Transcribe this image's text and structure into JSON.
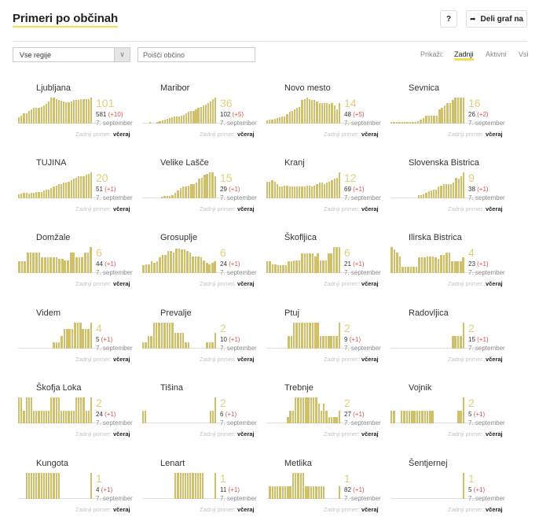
{
  "header": {
    "title": "Primeri po občinah",
    "help_label": "?",
    "share_label": "Deli graf na"
  },
  "filters": {
    "region_selected": "Vse regije",
    "search_placeholder": "Poišči občino",
    "show_label": "Prikaži:",
    "options": [
      "Zadnji",
      "Aktivni",
      "Vsi"
    ],
    "active_option": "Zadnji"
  },
  "colors": {
    "bar": "#d1c069",
    "count": "#e0cf7a",
    "delta": "#d9534f",
    "accent_underline": "#f2de52"
  },
  "labels": {
    "last_case_prefix": "Zadnji primer:",
    "last_case_value": "včeraj",
    "date": "7. september"
  },
  "chart_data": {
    "type": "bar",
    "title": "Primeri po občinah",
    "description": "Small-multiple sparkline bar charts of active cases per municipality (relative heights 0-1 estimated)",
    "municipalities": [
      {
        "name": "Ljubljana",
        "active": "101",
        "total": "581",
        "delta": "(+10)",
        "values": [
          0.25,
          0.3,
          0.4,
          0.4,
          0.5,
          0.55,
          0.6,
          0.62,
          0.62,
          0.65,
          0.7,
          0.75,
          0.85,
          1.0,
          1.0,
          0.95,
          0.9,
          0.88,
          0.85,
          0.82,
          0.82,
          0.85,
          0.9,
          0.92,
          0.92,
          0.95,
          0.95,
          0.95,
          0.93,
          1.0
        ]
      },
      {
        "name": "Maribor",
        "active": "36",
        "total": "102",
        "delta": "(+5)",
        "values": [
          0,
          0,
          0,
          0.05,
          0,
          0,
          0.05,
          0.08,
          0.12,
          0.15,
          0.18,
          0.22,
          0.25,
          0.28,
          0.28,
          0.28,
          0.3,
          0.35,
          0.4,
          0.45,
          0.48,
          0.5,
          0.55,
          0.6,
          0.65,
          0.7,
          0.72,
          0.78,
          0.85,
          0.95,
          1.0
        ]
      },
      {
        "name": "Novo mesto",
        "active": "14",
        "total": "48",
        "delta": "(+5)",
        "values": [
          0.12,
          0.15,
          0.15,
          0.18,
          0.2,
          0.25,
          0.28,
          0.28,
          0.38,
          0.45,
          0.5,
          0.55,
          0.6,
          0.65,
          0.9,
          0.95,
          1.0,
          0.95,
          0.9,
          0.92,
          0.85,
          0.8,
          0.8,
          0.8,
          0.8,
          0.75,
          0.8,
          0.7,
          0.55,
          0.8
        ]
      },
      {
        "name": "Sevnica",
        "active": "16",
        "total": "26",
        "delta": "(+2)",
        "values": [
          0.05,
          0.05,
          0.05,
          0.05,
          0.05,
          0.05,
          0.06,
          0.06,
          0.06,
          0.06,
          0.1,
          0.15,
          0.2,
          0.3,
          0.3,
          0.3,
          0.3,
          0.3,
          0.55,
          0.6,
          0.7,
          0.8,
          0.8,
          0.9,
          1.0,
          1.0,
          1.0,
          1.0
        ]
      },
      {
        "name": "TUJINA",
        "active": "20",
        "total": "51",
        "delta": "(+1)",
        "values": [
          0.15,
          0.18,
          0.2,
          0.2,
          0.18,
          0.2,
          0.22,
          0.25,
          0.25,
          0.25,
          0.3,
          0.35,
          0.35,
          0.4,
          0.45,
          0.5,
          0.55,
          0.55,
          0.6,
          0.62,
          0.65,
          0.7,
          0.75,
          0.8,
          0.85,
          0.85,
          0.85,
          0.9,
          0.95,
          1.0
        ]
      },
      {
        "name": "Velike Lašče",
        "active": "15",
        "total": "29",
        "delta": "(+1)",
        "values": [
          0,
          0,
          0,
          0,
          0,
          0,
          0,
          0.05,
          0.08,
          0.08,
          0.1,
          0.12,
          0.2,
          0.3,
          0.4,
          0.45,
          0.45,
          0.5,
          0.55,
          0.55,
          0.6,
          0.75,
          0.8,
          0.9,
          0.95,
          1.0,
          1.0,
          0.85
        ]
      },
      {
        "name": "Kranj",
        "active": "12",
        "total": "69",
        "delta": "(+1)",
        "values": [
          0.65,
          0.65,
          0.7,
          0.65,
          0.55,
          0.45,
          0.45,
          0.5,
          0.5,
          0.45,
          0.45,
          0.45,
          0.45,
          0.45,
          0.45,
          0.45,
          0.48,
          0.48,
          0.45,
          0.5,
          0.55,
          0.6,
          0.6,
          0.55,
          0.6,
          0.65,
          0.7,
          0.75,
          0.8,
          1.0
        ]
      },
      {
        "name": "Slovenska Bistrica",
        "active": "9",
        "total": "38",
        "delta": "(+1)",
        "values": [
          0,
          0,
          0,
          0,
          0,
          0,
          0,
          0,
          0,
          0,
          0,
          0.12,
          0.12,
          0.15,
          0.2,
          0.28,
          0.3,
          0.35,
          0.35,
          0.45,
          0.5,
          0.55,
          0.55,
          0.55,
          0.55,
          0.6,
          0.8,
          0.75,
          0.85,
          1.0
        ]
      },
      {
        "name": "Domžale",
        "active": "6",
        "total": "44",
        "delta": "(+1)",
        "values": [
          0.45,
          0.45,
          0.45,
          0.8,
          0.8,
          0.8,
          0.8,
          0.8,
          0.6,
          0.6,
          0.6,
          0.6,
          0.6,
          0.6,
          0.55,
          0.55,
          0.5,
          0.5,
          0.8,
          0.8,
          0.6,
          0.6,
          0.6,
          0.8,
          0.8,
          1.0
        ]
      },
      {
        "name": "Grosuplje",
        "active": "6",
        "total": "24",
        "delta": "(+1)",
        "values": [
          0.3,
          0.35,
          0.35,
          0.45,
          0.4,
          0.45,
          0.6,
          0.7,
          0.7,
          0.85,
          0.85,
          0.8,
          0.95,
          0.95,
          0.9,
          0.9,
          0.85,
          0.8,
          0.65,
          0.65,
          0.65,
          0.6,
          0.5,
          0.4,
          0.35,
          0.4,
          0.45
        ]
      },
      {
        "name": "Škofljica",
        "active": "6",
        "total": "21",
        "delta": "(+1)",
        "values": [
          0.45,
          0.45,
          0.35,
          0.35,
          0.3,
          0.3,
          0.3,
          0.3,
          0.45,
          0.45,
          0.5,
          0.5,
          0.5,
          0.75,
          0.75,
          0.75,
          0.75,
          0.75,
          0.65,
          0.75,
          0.5,
          0.5,
          0.5,
          0.75,
          0.75,
          1.0,
          1.0,
          1.0
        ]
      },
      {
        "name": "Ilirska Bistrica",
        "active": "4",
        "total": "23",
        "delta": "(+1)",
        "values": [
          1.0,
          0.9,
          0.8,
          0.65,
          0.25,
          0.25,
          0.25,
          0.25,
          0.25,
          0.25,
          0.6,
          0.6,
          0.6,
          0.65,
          0.65,
          0.65,
          0.6,
          0.55,
          0.7,
          0.7,
          0.8,
          0.8,
          0.45,
          0.45,
          0.45,
          0.45,
          0.6
        ]
      },
      {
        "name": "Videm",
        "active": "4",
        "total": "5",
        "delta": "(+1)",
        "values": [
          0,
          0,
          0,
          0,
          0,
          0,
          0,
          0,
          0,
          0,
          0,
          0,
          0,
          0.25,
          0.25,
          0.25,
          0.5,
          0.75,
          0.75,
          0.75,
          0.75,
          1.0,
          1.0,
          1.0,
          0.75,
          0.75,
          0.75,
          1.0
        ]
      },
      {
        "name": "Prevalje",
        "active": "2",
        "total": "10",
        "delta": "(+1)",
        "values": [
          0.25,
          0.25,
          0.5,
          0.5,
          1.0,
          1.0,
          1.0,
          1.0,
          1.0,
          1.0,
          1.0,
          1.0,
          0.6,
          0.6,
          0.6,
          0.6,
          0.25,
          0.25,
          0,
          0,
          0,
          0,
          0,
          0,
          0.25,
          0.25,
          0.25,
          0.6
        ]
      },
      {
        "name": "Ptuj",
        "active": "2",
        "total": "9",
        "delta": "(+1)",
        "values": [
          0,
          0,
          0,
          0,
          0,
          0,
          0,
          0,
          0.5,
          0.5,
          1.0,
          1.0,
          1.0,
          1.0,
          1.0,
          1.0,
          1.0,
          1.0,
          1.0,
          1.0,
          0.5,
          0.5,
          0.5,
          0.5,
          0.5,
          0.5,
          0.5,
          1.0
        ]
      },
      {
        "name": "Radovljica",
        "active": "2",
        "total": "15",
        "delta": "(+1)",
        "values": [
          0,
          0,
          0,
          0,
          0,
          0,
          0,
          0,
          0,
          0,
          0,
          0,
          0,
          0,
          0,
          0,
          0,
          0,
          0,
          0,
          0,
          0,
          0,
          0.5,
          0.5,
          0.5,
          0.5,
          1.0
        ]
      },
      {
        "name": "Škofja Loka",
        "active": "2",
        "total": "24",
        "delta": "(+1)",
        "values": [
          1.0,
          1.0,
          0.5,
          1.0,
          1.0,
          1.0,
          0.5,
          0.5,
          0.5,
          0.5,
          0.5,
          0.5,
          0.5,
          1.0,
          1.0,
          1.0,
          1.0,
          0.5,
          0.5,
          0.5,
          0.5,
          0.5,
          0.5,
          1.0,
          1.0,
          1.0,
          1.0,
          0.5,
          0.5,
          1.0
        ]
      },
      {
        "name": "Tišina",
        "active": "2",
        "total": "6",
        "delta": "(+1)",
        "values": [
          0.5,
          0.5,
          0,
          0,
          0,
          0,
          0,
          0,
          0,
          0,
          0,
          0,
          0,
          0,
          0,
          0,
          0,
          0,
          0,
          0,
          0,
          0,
          0,
          0,
          0,
          0,
          0,
          0.5,
          0.5,
          1.0
        ]
      },
      {
        "name": "Trebnje",
        "active": "2",
        "total": "27",
        "delta": "(+1)",
        "values": [
          0,
          0,
          0,
          0,
          0,
          0,
          0,
          0,
          0.25,
          0.5,
          0.5,
          1.0,
          1.0,
          1.0,
          1.0,
          1.0,
          1.0,
          1.0,
          1.0,
          1.0,
          0.75,
          0.5,
          0.75,
          0.5,
          0.25,
          0.25,
          0.25,
          0.25,
          0.5
        ]
      },
      {
        "name": "Vojnik",
        "active": "2",
        "total": "5",
        "delta": "(+1)",
        "values": [
          0.5,
          0.5,
          0,
          0,
          0.5,
          0.5,
          0.5,
          0.5,
          0.5,
          0.5,
          0.5,
          0.5,
          0.5,
          0.5,
          0.5,
          0.5,
          0.5,
          0,
          0,
          0,
          0,
          0,
          0,
          0,
          0,
          0,
          0.5,
          0.5,
          1.0
        ]
      },
      {
        "name": "Kungota",
        "active": "1",
        "total": "4",
        "delta": "(+1)",
        "values": [
          0,
          0,
          0,
          1,
          1,
          1,
          1,
          1,
          1,
          1,
          1,
          1,
          1,
          1,
          1,
          1,
          1,
          0,
          0,
          0,
          0,
          0,
          0,
          0,
          0,
          0,
          0,
          0,
          0,
          1
        ]
      },
      {
        "name": "Lenart",
        "active": "1",
        "total": "11",
        "delta": "(+1)",
        "values": [
          0,
          0,
          0,
          0,
          0,
          0,
          0,
          0,
          0,
          0,
          0,
          0,
          0,
          1,
          1,
          1,
          1,
          1,
          1,
          1,
          1,
          1,
          1,
          1,
          1,
          0,
          0,
          0,
          0,
          1
        ]
      },
      {
        "name": "Metlika",
        "active": "1",
        "total": "82",
        "delta": "(+1)",
        "values": [
          0,
          0.5,
          0.5,
          0.5,
          0.5,
          0.5,
          0.5,
          0.5,
          0.5,
          0.5,
          1,
          1,
          1,
          1,
          1,
          0.5,
          0.5,
          0.5,
          0.5,
          0.5,
          0.5,
          0.5,
          0.5,
          0,
          0,
          0,
          0,
          0,
          0.5
        ]
      },
      {
        "name": "Šentjernej",
        "active": "1",
        "total": "5",
        "delta": "(+1)",
        "values": [
          0,
          0,
          0,
          0,
          0,
          0,
          0,
          0,
          0,
          0,
          0,
          0,
          0,
          0,
          0,
          0,
          0,
          0,
          0,
          0,
          0,
          0,
          0,
          0,
          0,
          0,
          0,
          0,
          1
        ]
      }
    ]
  }
}
